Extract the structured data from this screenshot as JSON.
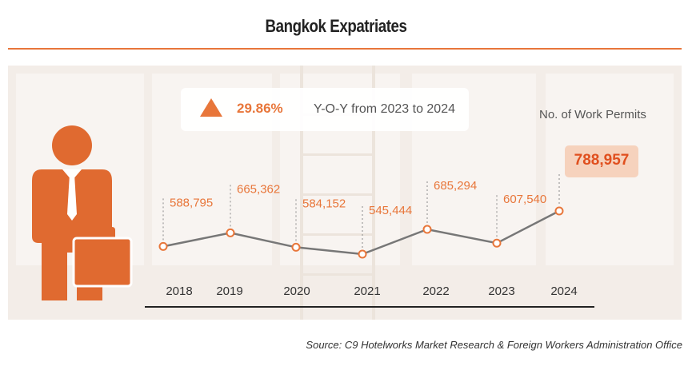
{
  "header": {
    "title": "Bangkok Expatriates"
  },
  "summary": {
    "yoy_percent": "29.86%",
    "yoy_text": "Y-O-Y from 2023 to 2024",
    "trend_icon": "up-triangle-icon"
  },
  "highlight": {
    "label": "No. of Work Permits",
    "value": "788,957"
  },
  "footer": {
    "source": "Source: C9 Hotelworks Market Research & Foreign Workers Administration Office"
  },
  "colors": {
    "accent": "#e8763a",
    "highlight_text": "#e04f1e",
    "highlight_bg": "#f6d2bd",
    "line": "#777777"
  },
  "chart_data": {
    "type": "line",
    "categories": [
      "2018",
      "2019",
      "2020",
      "2021",
      "2022",
      "2023",
      "2024"
    ],
    "values": [
      588795,
      665362,
      584152,
      545444,
      685294,
      607540,
      788957
    ],
    "value_labels": [
      "588,795",
      "665,362",
      "584,152",
      "545,444",
      "685,294",
      "607,540",
      ""
    ],
    "title": "Bangkok Expatriates",
    "ylabel": "No. of Work Permits",
    "grid": false,
    "legend": "none"
  }
}
